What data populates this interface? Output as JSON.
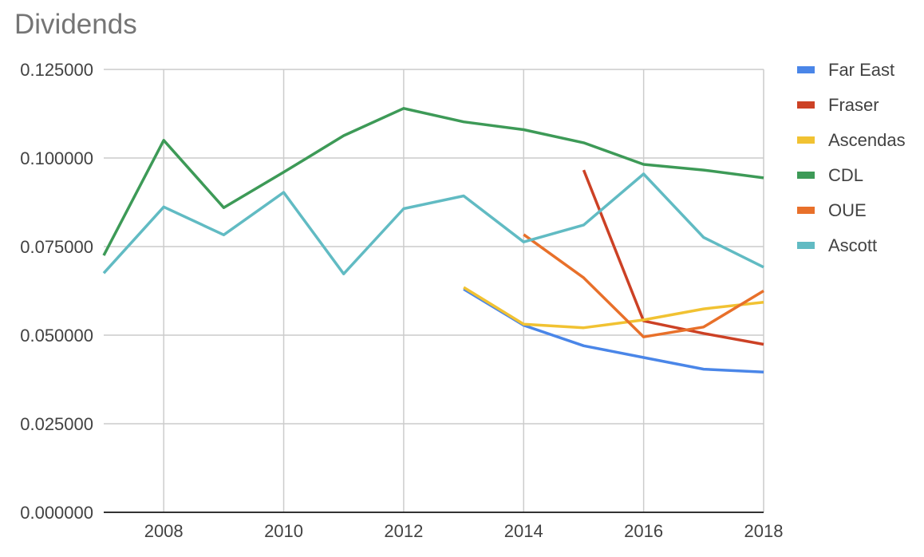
{
  "chart_data": {
    "type": "line",
    "title": "Dividends",
    "xlabel": "",
    "ylabel": "",
    "xlim": [
      2007,
      2018
    ],
    "ylim": [
      0,
      0.125
    ],
    "x_ticks": [
      "2008",
      "2010",
      "2012",
      "2014",
      "2016",
      "2018"
    ],
    "y_ticks": [
      "0.000000",
      "0.025000",
      "0.050000",
      "0.075000",
      "0.100000",
      "0.125000"
    ],
    "grid": true,
    "legend_position": "right",
    "x": [
      2007,
      2008,
      2009,
      2010,
      2011,
      2012,
      2013,
      2014,
      2015,
      2016,
      2017,
      2018
    ],
    "series": [
      {
        "name": "Far East",
        "color": "#4a86e8",
        "values": [
          null,
          null,
          null,
          null,
          null,
          null,
          0.063,
          0.0528,
          0.047,
          0.0437,
          0.0404,
          0.0396
        ]
      },
      {
        "name": "Fraser",
        "color": "#cc4125",
        "values": [
          null,
          null,
          null,
          null,
          null,
          null,
          null,
          null,
          0.0966,
          0.054,
          0.0505,
          0.0474
        ]
      },
      {
        "name": "Ascendas",
        "color": "#f1c232",
        "values": [
          null,
          null,
          null,
          null,
          null,
          null,
          0.0635,
          0.0531,
          0.0521,
          0.0543,
          0.0574,
          0.0593
        ]
      },
      {
        "name": "CDL",
        "color": "#3d9a57",
        "values": [
          0.0725,
          0.105,
          0.086,
          0.096,
          0.1063,
          0.114,
          0.1102,
          0.108,
          0.1043,
          0.0982,
          0.0966,
          0.0944
        ]
      },
      {
        "name": "OUE",
        "color": "#e8702a",
        "values": [
          null,
          null,
          null,
          null,
          null,
          null,
          null,
          0.0784,
          0.0662,
          0.0495,
          0.0523,
          0.0625
        ]
      },
      {
        "name": "Ascott",
        "color": "#61bbc3",
        "values": [
          0.0675,
          0.0862,
          0.0783,
          0.0903,
          0.0673,
          0.0857,
          0.0893,
          0.0763,
          0.0811,
          0.0955,
          0.0776,
          0.0692
        ]
      }
    ]
  }
}
